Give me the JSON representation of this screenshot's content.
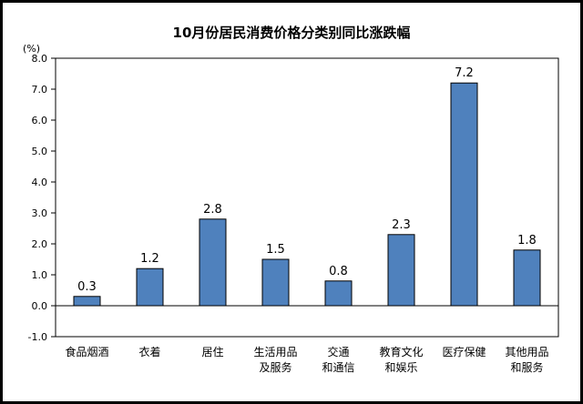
{
  "chart_data": {
    "type": "bar",
    "title": "10月份居民消费价格分类别同比涨跌幅",
    "unit": "(%)",
    "categories": [
      [
        "食品烟酒"
      ],
      [
        "衣着"
      ],
      [
        "居住"
      ],
      [
        "生活用品",
        "及服务"
      ],
      [
        "交通",
        "和通信"
      ],
      [
        "教育文化",
        "和娱乐"
      ],
      [
        "医疗保健"
      ],
      [
        "其他用品",
        "和服务"
      ]
    ],
    "values": [
      0.3,
      1.2,
      2.8,
      1.5,
      0.8,
      2.3,
      7.2,
      1.8
    ],
    "value_labels": [
      "0.3",
      "1.2",
      "2.8",
      "1.5",
      "0.8",
      "2.3",
      "7.2",
      "1.8"
    ],
    "yticks": [
      "8.0",
      "7.0",
      "6.0",
      "5.0",
      "4.0",
      "3.0",
      "2.0",
      "1.0",
      "0.0",
      "-1.0"
    ],
    "ylim": [
      -1.0,
      8.0
    ],
    "grid": false,
    "bar_color": "#4f81bd"
  }
}
